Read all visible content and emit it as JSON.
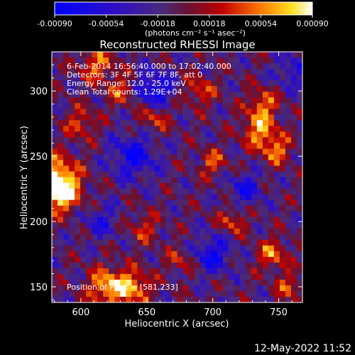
{
  "colorbar": {
    "ticks": [
      "-0.00090",
      "-0.00054",
      "-0.00018",
      "0.00018",
      "0.00054",
      "0.00090"
    ],
    "unit_label": "(photons cm⁻² s⁻¹ asec⁻²)",
    "vmin": -0.0009,
    "vmax": 0.0009
  },
  "chart_data": {
    "type": "heatmap",
    "title": "Reconstructed RHESSI Image",
    "xlabel": "Heliocentric X (arcsec)",
    "ylabel": "Heliocentric Y (arcsec)",
    "xlim": [
      578,
      768
    ],
    "ylim": [
      138,
      330
    ],
    "x_ticks": [
      600,
      650,
      700,
      750
    ],
    "y_ticks": [
      150,
      200,
      250,
      300
    ],
    "colormap": "blue-purple-red-yellow-white",
    "grid": false,
    "annotations": [
      "6-Feb-2014 16:56:40.000 to 17:02:40.000",
      "Detectors: 3F 4F 5F 6F 7F 8F, att 0",
      "Energy Range: 12.0 - 25.0 keV",
      "Clean     Total counts: 1.29E+04"
    ],
    "peak_label": "Position of Peak = [581,233]",
    "peak_position": [
      581,
      233
    ],
    "hotspots": [
      {
        "x": 580,
        "y": 233,
        "v": 0.0009,
        "r": 12
      },
      {
        "x": 585,
        "y": 222,
        "v": 0.0008,
        "r": 10
      },
      {
        "x": 620,
        "y": 150,
        "v": 0.0008,
        "r": 10
      },
      {
        "x": 640,
        "y": 150,
        "v": 0.0007,
        "r": 9
      },
      {
        "x": 735,
        "y": 270,
        "v": 0.0007,
        "r": 9
      },
      {
        "x": 738,
        "y": 290,
        "v": 0.0006,
        "r": 8
      },
      {
        "x": 748,
        "y": 255,
        "v": 0.0006,
        "r": 8
      },
      {
        "x": 612,
        "y": 320,
        "v": 0.0006,
        "r": 9
      },
      {
        "x": 632,
        "y": 300,
        "v": 0.0005,
        "r": 8
      },
      {
        "x": 655,
        "y": 280,
        "v": 0.0005,
        "r": 8
      },
      {
        "x": 690,
        "y": 300,
        "v": 0.0005,
        "r": 8
      },
      {
        "x": 700,
        "y": 245,
        "v": 0.0005,
        "r": 7
      },
      {
        "x": 715,
        "y": 200,
        "v": 0.0005,
        "r": 7
      },
      {
        "x": 745,
        "y": 175,
        "v": 0.0006,
        "r": 8
      },
      {
        "x": 758,
        "y": 150,
        "v": 0.0005,
        "r": 7
      },
      {
        "x": 600,
        "y": 275,
        "v": 0.0005,
        "r": 8
      },
      {
        "x": 648,
        "y": 195,
        "v": 0.0004,
        "r": 8
      },
      {
        "x": 675,
        "y": 170,
        "v": 0.0004,
        "r": 7
      },
      {
        "x": 640,
        "y": 250,
        "v": -0.0006,
        "r": 12
      },
      {
        "x": 655,
        "y": 300,
        "v": -0.0007,
        "r": 10
      },
      {
        "x": 700,
        "y": 175,
        "v": -0.0006,
        "r": 10
      },
      {
        "x": 725,
        "y": 225,
        "v": -0.0005,
        "r": 9
      },
      {
        "x": 615,
        "y": 200,
        "v": -0.0004,
        "r": 9
      },
      {
        "x": 760,
        "y": 315,
        "v": -0.0004,
        "r": 9
      }
    ]
  },
  "timestamp": "12-May-2022 11:52"
}
